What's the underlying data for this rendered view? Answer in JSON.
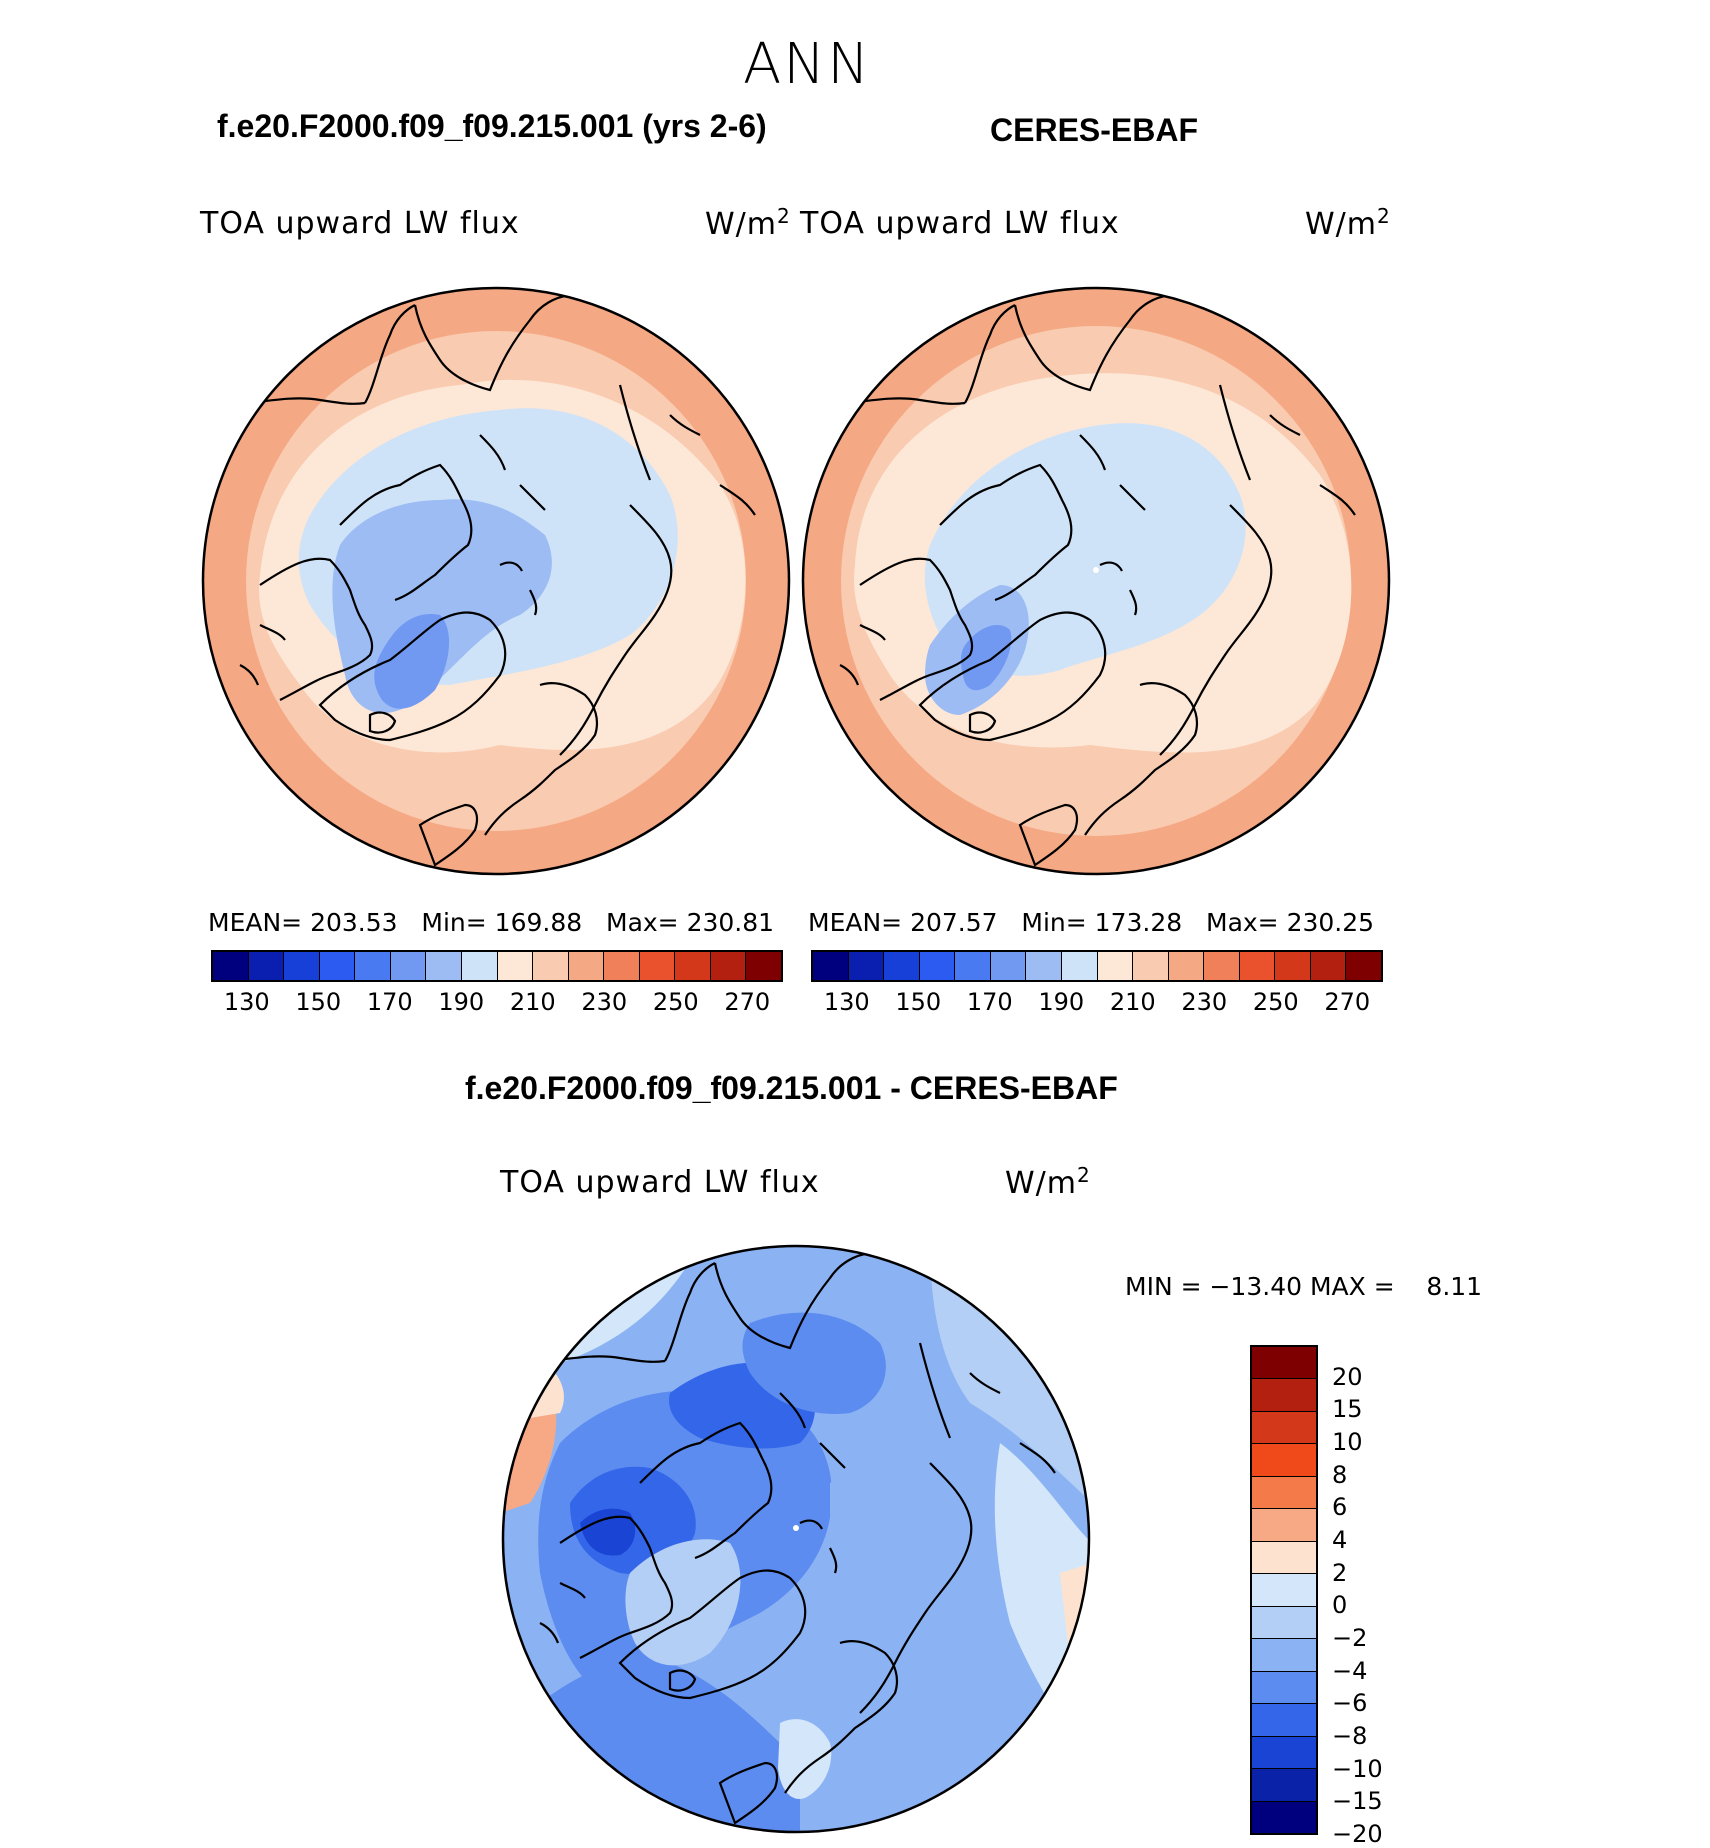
{
  "season": "ANN",
  "panels": [
    {
      "case_title": "f.e20.F2000.f09_f09.215.001 (yrs 2-6)",
      "variable_label": "TOA upward LW flux",
      "units_label": "W/m",
      "units_sup": "2",
      "stats": {
        "mean_label": "MEAN=",
        "mean": "203.53",
        "min_label": "Min=",
        "min": "169.88",
        "max_label": "Max=",
        "max": "230.81"
      },
      "colorbar_ticks": [
        "130",
        "150",
        "170",
        "190",
        "210",
        "230",
        "250",
        "270"
      ]
    },
    {
      "case_title": "CERES-EBAF",
      "variable_label": "TOA upward LW flux",
      "units_label": "W/m",
      "units_sup": "2",
      "stats": {
        "mean_label": "MEAN=",
        "mean": "207.57",
        "min_label": "Min=",
        "min": "173.28",
        "max_label": "Max=",
        "max": "230.25"
      },
      "colorbar_ticks": [
        "130",
        "150",
        "170",
        "190",
        "210",
        "230",
        "250",
        "270"
      ]
    }
  ],
  "diff": {
    "title": "f.e20.F2000.f09_f09.215.001 - CERES-EBAF",
    "variable_label": "TOA upward LW flux",
    "units_label": "W/m",
    "units_sup": "2",
    "minmax": "MIN = −13.40 MAX =    8.11",
    "colorbar_ticks": [
      "20",
      "15",
      "10",
      "8",
      "6",
      "4",
      "2",
      "0",
      "−2",
      "−4",
      "−6",
      "−8",
      "−10",
      "−15",
      "−20"
    ]
  },
  "colors": {
    "abs_scale": [
      "#00007f",
      "#0a1fb0",
      "#1640d8",
      "#2b5bf0",
      "#4a7af2",
      "#7199f2",
      "#9dbcf4",
      "#cfe3f8",
      "#fde7d6",
      "#f9cbb0",
      "#f5a884",
      "#f0805a",
      "#e9522d",
      "#d4381a",
      "#b42010",
      "#7f0000"
    ],
    "diff_scale": [
      "#7f0000",
      "#b42010",
      "#d4381a",
      "#f04a1a",
      "#f57a4a",
      "#f7a884",
      "#fde3cf",
      "#d3e6fa",
      "#b4cff5",
      "#8bb2f3",
      "#5d8cf0",
      "#3366e8",
      "#1a44d4",
      "#0a22a8",
      "#00007f"
    ]
  }
}
